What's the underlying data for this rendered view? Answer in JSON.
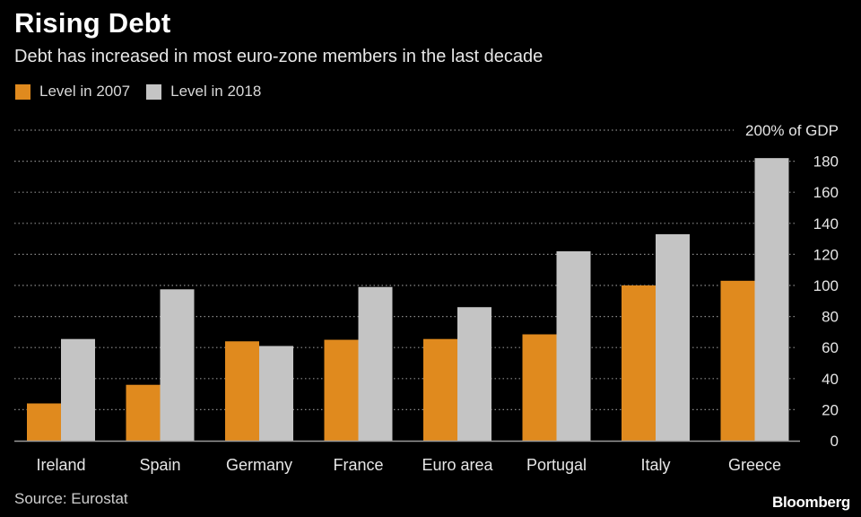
{
  "header": {
    "title": "Rising Debt",
    "subtitle": "Debt has increased in most euro-zone members in the last decade"
  },
  "colors": {
    "level_2007": "#e08a1e",
    "level_2018": "#c4c4c4",
    "grid": "#8a8a8a",
    "axis": "#9a9a9a",
    "text": "#e6e6e6"
  },
  "chart_data": {
    "type": "bar",
    "title": "Rising Debt",
    "subtitle": "Debt has increased in most euro-zone members in the last decade",
    "categories": [
      "Ireland",
      "Spain",
      "Germany",
      "France",
      "Euro area",
      "Portugal",
      "Italy",
      "Greece"
    ],
    "series": [
      {
        "name": "Level in 2007",
        "values": [
          24,
          36,
          64,
          65,
          65.5,
          68.5,
          100,
          103
        ]
      },
      {
        "name": "Level in 2018",
        "values": [
          65.5,
          97.5,
          61,
          99,
          86,
          122,
          133,
          182
        ]
      }
    ],
    "xlabel": "",
    "ylabel": "",
    "ylim": [
      0,
      200
    ],
    "yticks": [
      "0",
      "20",
      "40",
      "60",
      "80",
      "100",
      "120",
      "140",
      "160",
      "180",
      "200% of GDP"
    ],
    "grid": true,
    "legend_position": "top-left"
  },
  "footer": {
    "source": "Source: Eurostat",
    "brand": "Bloomberg"
  }
}
